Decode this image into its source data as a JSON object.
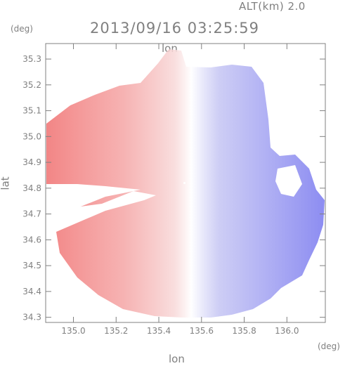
{
  "header": {
    "altitude": "ALT(km) 2.0",
    "timestamp": "2013/09/16 03:25:59"
  },
  "axes": {
    "y_unit": "(deg)",
    "x_unit": "(deg)",
    "xlabel": "lon",
    "ylabel": "lat",
    "top_lon_label": "lon"
  },
  "chart_data": {
    "type": "heatmap",
    "title": "2013/09/16 03:25:59",
    "subtitle": "ALT(km) 2.0",
    "xlabel": "lon",
    "ylabel": "lat",
    "xlim": [
      134.87,
      136.18
    ],
    "ylim": [
      34.28,
      35.36
    ],
    "x_ticks": [
      "135.0",
      "135.2",
      "135.4",
      "135.6",
      "135.8",
      "136.0"
    ],
    "x_tick_values": [
      135.0,
      135.2,
      135.4,
      135.6,
      135.8,
      136.0
    ],
    "y_ticks": [
      "34.3",
      "34.4",
      "34.5",
      "34.6",
      "34.7",
      "34.8",
      "34.9",
      "35.0",
      "35.1",
      "35.2",
      "35.3"
    ],
    "y_tick_values": [
      34.3,
      34.4,
      34.5,
      34.6,
      34.7,
      34.8,
      34.9,
      35.0,
      35.1,
      35.2,
      35.3
    ],
    "radar_center": [
      135.52,
      34.82
    ],
    "colors": {
      "negative": "#8080f0",
      "zero": "#ffffff",
      "positive": "#f07070",
      "axis": "#808080"
    },
    "grid": false
  }
}
